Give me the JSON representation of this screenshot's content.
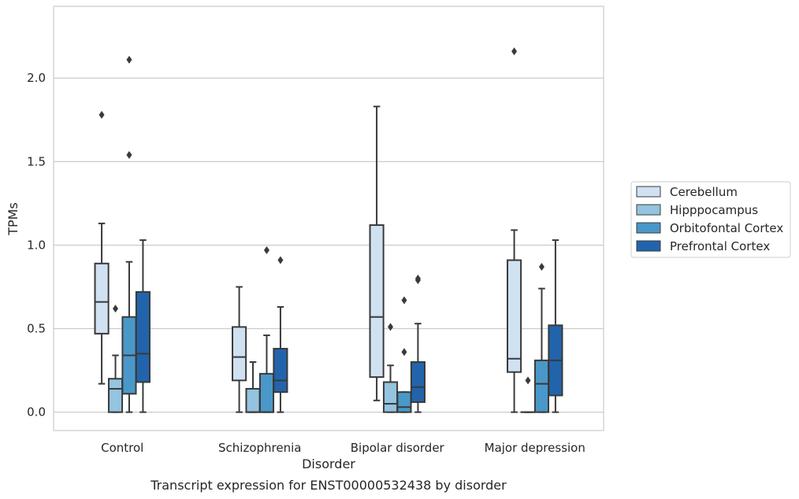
{
  "chart_data": {
    "type": "boxplot",
    "caption": "Transcript expression for ENST00000532438 by disorder",
    "xlabel": "Disorder",
    "ylabel": "TPMs",
    "ylim": [
      -0.11,
      2.43
    ],
    "yticks": [
      0.0,
      0.5,
      1.0,
      1.5,
      2.0
    ],
    "ytick_labels": [
      "0.0",
      "0.5",
      "1.0",
      "1.5",
      "2.0"
    ],
    "grid": "horizontal",
    "legend_position": "right",
    "categories": [
      "Control",
      "Schizophrenia",
      "Bipolar disorder",
      "Major depression"
    ],
    "series": [
      {
        "name": "Cerebellum",
        "color": "#d0e1f2",
        "boxes": [
          {
            "whislo": 0.17,
            "q1": 0.47,
            "med": 0.66,
            "q3": 0.89,
            "whishi": 1.13,
            "fliers": [
              1.78
            ]
          },
          {
            "whislo": 0.0,
            "q1": 0.19,
            "med": 0.33,
            "q3": 0.51,
            "whishi": 0.75,
            "fliers": []
          },
          {
            "whislo": 0.07,
            "q1": 0.21,
            "med": 0.57,
            "q3": 1.12,
            "whishi": 1.83,
            "fliers": []
          },
          {
            "whislo": 0.0,
            "q1": 0.24,
            "med": 0.32,
            "q3": 0.91,
            "whishi": 1.09,
            "fliers": [
              2.16
            ]
          }
        ]
      },
      {
        "name": "Hipppocampus",
        "color": "#94c4df",
        "boxes": [
          {
            "whislo": 0.0,
            "q1": 0.0,
            "med": 0.14,
            "q3": 0.2,
            "whishi": 0.34,
            "fliers": [
              0.62
            ]
          },
          {
            "whislo": 0.0,
            "q1": 0.0,
            "med": 0.0,
            "q3": 0.14,
            "whishi": 0.3,
            "fliers": []
          },
          {
            "whislo": 0.0,
            "q1": 0.0,
            "med": 0.05,
            "q3": 0.18,
            "whishi": 0.28,
            "fliers": [
              0.51
            ]
          },
          {
            "whislo": 0.0,
            "q1": 0.0,
            "med": 0.0,
            "q3": 0.0,
            "whishi": 0.0,
            "fliers": [
              0.19
            ]
          }
        ]
      },
      {
        "name": "Orbitofontal Cortex",
        "color": "#4a98c9",
        "boxes": [
          {
            "whislo": 0.0,
            "q1": 0.11,
            "med": 0.34,
            "q3": 0.57,
            "whishi": 0.9,
            "fliers": [
              1.54,
              2.11
            ]
          },
          {
            "whislo": 0.0,
            "q1": 0.0,
            "med": 0.0,
            "q3": 0.23,
            "whishi": 0.46,
            "fliers": [
              0.97
            ]
          },
          {
            "whislo": 0.0,
            "q1": 0.0,
            "med": 0.03,
            "q3": 0.12,
            "whishi": 0.12,
            "fliers": [
              0.36,
              0.67
            ]
          },
          {
            "whislo": 0.0,
            "q1": 0.0,
            "med": 0.17,
            "q3": 0.31,
            "whishi": 0.74,
            "fliers": [
              0.87
            ]
          }
        ]
      },
      {
        "name": "Prefrontal Cortex",
        "color": "#2264ab",
        "boxes": [
          {
            "whislo": 0.0,
            "q1": 0.18,
            "med": 0.35,
            "q3": 0.72,
            "whishi": 1.03,
            "fliers": []
          },
          {
            "whislo": 0.0,
            "q1": 0.12,
            "med": 0.19,
            "q3": 0.38,
            "whishi": 0.63,
            "fliers": [
              0.91
            ]
          },
          {
            "whislo": 0.0,
            "q1": 0.06,
            "med": 0.15,
            "q3": 0.3,
            "whishi": 0.53,
            "fliers": [
              0.79,
              0.8
            ]
          },
          {
            "whislo": 0.0,
            "q1": 0.1,
            "med": 0.31,
            "q3": 0.52,
            "whishi": 1.03,
            "fliers": []
          }
        ]
      }
    ]
  }
}
